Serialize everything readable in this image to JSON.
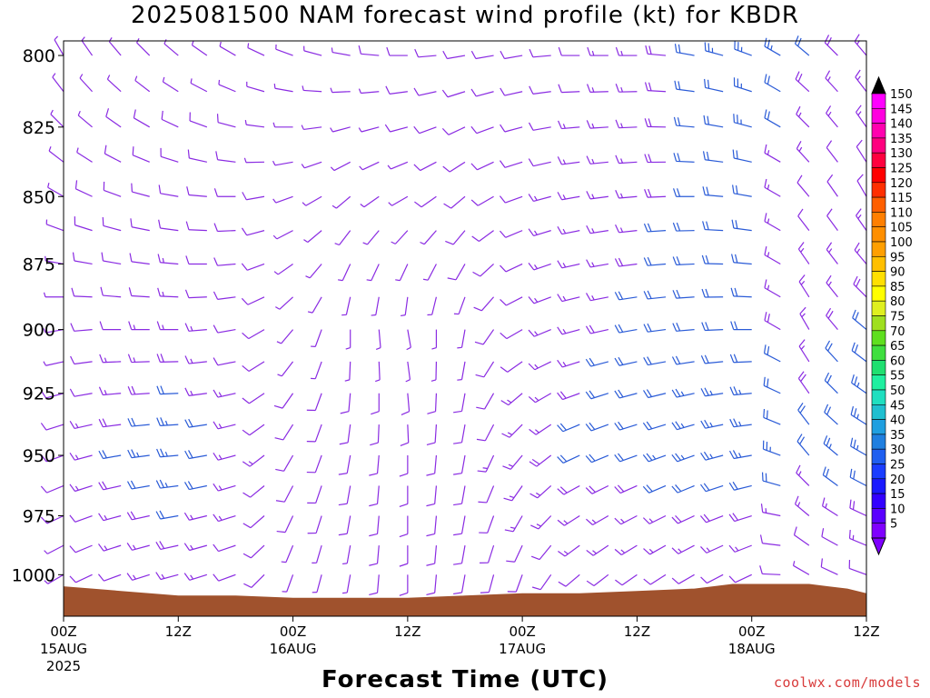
{
  "title": "2025081500 NAM forecast wind profile (kt) for KBDR",
  "credit": "coolwx.com/models",
  "colors": {
    "terrain": "#a0522d",
    "barb_light": "#8a2be2",
    "barb_strong": "#2a5bd7"
  },
  "chart_data": {
    "type": "wind-barb profile",
    "title": "2025081500 NAM forecast wind profile (kt) for KBDR",
    "xlabel": "Forecast Time (UTC)",
    "ylabel": "",
    "y_scale": "pressure (hPa), decreasing upward",
    "ylim": [
      1018,
      795
    ],
    "xlim_hours": [
      0,
      84
    ],
    "y_ticks": [
      {
        "value": 800,
        "label": "800"
      },
      {
        "value": 825,
        "label": "825"
      },
      {
        "value": 850,
        "label": "850"
      },
      {
        "value": 875,
        "label": "875"
      },
      {
        "value": 900,
        "label": "900"
      },
      {
        "value": 925,
        "label": "925"
      },
      {
        "value": 950,
        "label": "950"
      },
      {
        "value": 975,
        "label": "975"
      },
      {
        "value": 1000,
        "label": "1000"
      }
    ],
    "x_ticks": [
      {
        "hour": 0,
        "label": "00Z",
        "sub": "15AUG",
        "sub2": "2025"
      },
      {
        "hour": 12,
        "label": "12Z",
        "sub": "",
        "sub2": ""
      },
      {
        "hour": 24,
        "label": "00Z",
        "sub": "16AUG",
        "sub2": ""
      },
      {
        "hour": 36,
        "label": "12Z",
        "sub": "",
        "sub2": ""
      },
      {
        "hour": 48,
        "label": "00Z",
        "sub": "17AUG",
        "sub2": ""
      },
      {
        "hour": 60,
        "label": "12Z",
        "sub": "",
        "sub2": ""
      },
      {
        "hour": 72,
        "label": "00Z",
        "sub": "18AUG",
        "sub2": ""
      },
      {
        "hour": 84,
        "label": "12Z",
        "sub": "",
        "sub2": ""
      }
    ],
    "surface_pressure": [
      {
        "hour": 0,
        "p": 1005
      },
      {
        "hour": 3,
        "p": 1006
      },
      {
        "hour": 6,
        "p": 1007
      },
      {
        "hour": 9,
        "p": 1008
      },
      {
        "hour": 12,
        "p": 1009
      },
      {
        "hour": 18,
        "p": 1009
      },
      {
        "hour": 24,
        "p": 1010
      },
      {
        "hour": 30,
        "p": 1010
      },
      {
        "hour": 36,
        "p": 1010
      },
      {
        "hour": 42,
        "p": 1009
      },
      {
        "hour": 48,
        "p": 1008
      },
      {
        "hour": 54,
        "p": 1008
      },
      {
        "hour": 60,
        "p": 1007
      },
      {
        "hour": 66,
        "p": 1006
      },
      {
        "hour": 70,
        "p": 1004
      },
      {
        "hour": 72,
        "p": 1004
      },
      {
        "hour": 78,
        "p": 1004
      },
      {
        "hour": 80,
        "p": 1005
      },
      {
        "hour": 82,
        "p": 1006
      },
      {
        "hour": 84,
        "p": 1008
      }
    ],
    "colorbar": {
      "labels": [
        "5",
        "10",
        "15",
        "20",
        "25",
        "30",
        "35",
        "40",
        "45",
        "50",
        "55",
        "60",
        "65",
        "70",
        "75",
        "80",
        "85",
        "90",
        "95",
        "100",
        "105",
        "110",
        "115",
        "120",
        "125",
        "130",
        "135",
        "140",
        "145",
        "150"
      ],
      "colors": [
        "#7f00ff",
        "#5a00ff",
        "#3300ff",
        "#1a1aff",
        "#1a3dff",
        "#1f5ff0",
        "#1f7fe0",
        "#1f9fe0",
        "#1fbfd0",
        "#1fdfc0",
        "#1fefa0",
        "#1fdf70",
        "#3fdf3f",
        "#5fdf1f",
        "#9fdf1f",
        "#dfef1f",
        "#ffff00",
        "#ffdf00",
        "#ffbf00",
        "#ff9f00",
        "#ff8f00",
        "#ff7f00",
        "#ff5f00",
        "#ff2f00",
        "#ff0000",
        "#ff003f",
        "#ff007f",
        "#ff00af",
        "#ff00df",
        "#ff00ff"
      ]
    },
    "wind_columns": [
      {
        "hour": 0,
        "barbs": [
          {
            "p": 800,
            "dir": 330,
            "spd": 5
          },
          {
            "p": 850,
            "dir": 300,
            "spd": 5
          },
          {
            "p": 900,
            "dir": 260,
            "spd": 5
          },
          {
            "p": 950,
            "dir": 250,
            "spd": 10
          },
          {
            "p": 1000,
            "dir": 240,
            "spd": 5
          }
        ]
      },
      {
        "hour": 6,
        "barbs": [
          {
            "p": 800,
            "dir": 320,
            "spd": 5
          },
          {
            "p": 850,
            "dir": 290,
            "spd": 10
          },
          {
            "p": 900,
            "dir": 270,
            "spd": 10
          },
          {
            "p": 950,
            "dir": 260,
            "spd": 20
          },
          {
            "p": 1000,
            "dir": 250,
            "spd": 10
          }
        ]
      },
      {
        "hour": 12,
        "barbs": [
          {
            "p": 800,
            "dir": 310,
            "spd": 5
          },
          {
            "p": 850,
            "dir": 280,
            "spd": 10
          },
          {
            "p": 900,
            "dir": 270,
            "spd": 15
          },
          {
            "p": 950,
            "dir": 265,
            "spd": 25
          },
          {
            "p": 1000,
            "dir": 255,
            "spd": 15
          }
        ]
      },
      {
        "hour": 18,
        "barbs": [
          {
            "p": 800,
            "dir": 300,
            "spd": 5
          },
          {
            "p": 850,
            "dir": 270,
            "spd": 10
          },
          {
            "p": 900,
            "dir": 260,
            "spd": 10
          },
          {
            "p": 950,
            "dir": 255,
            "spd": 15
          },
          {
            "p": 1000,
            "dir": 250,
            "spd": 10
          }
        ]
      },
      {
        "hour": 24,
        "barbs": [
          {
            "p": 800,
            "dir": 290,
            "spd": 5
          },
          {
            "p": 850,
            "dir": 250,
            "spd": 5
          },
          {
            "p": 900,
            "dir": 220,
            "spd": 5
          },
          {
            "p": 950,
            "dir": 210,
            "spd": 10
          },
          {
            "p": 1000,
            "dir": 200,
            "spd": 5
          }
        ]
      },
      {
        "hour": 30,
        "barbs": [
          {
            "p": 800,
            "dir": 280,
            "spd": 5
          },
          {
            "p": 850,
            "dir": 230,
            "spd": 5
          },
          {
            "p": 900,
            "dir": 180,
            "spd": 5
          },
          {
            "p": 950,
            "dir": 190,
            "spd": 10
          },
          {
            "p": 1000,
            "dir": 190,
            "spd": 5
          }
        ]
      },
      {
        "hour": 36,
        "barbs": [
          {
            "p": 800,
            "dir": 270,
            "spd": 10
          },
          {
            "p": 850,
            "dir": 240,
            "spd": 5
          },
          {
            "p": 900,
            "dir": 170,
            "spd": 5
          },
          {
            "p": 950,
            "dir": 180,
            "spd": 10
          },
          {
            "p": 1000,
            "dir": 180,
            "spd": 10
          }
        ]
      },
      {
        "hour": 42,
        "barbs": [
          {
            "p": 800,
            "dir": 260,
            "spd": 10
          },
          {
            "p": 850,
            "dir": 230,
            "spd": 10
          },
          {
            "p": 900,
            "dir": 190,
            "spd": 5
          },
          {
            "p": 950,
            "dir": 190,
            "spd": 10
          },
          {
            "p": 1000,
            "dir": 190,
            "spd": 10
          }
        ]
      },
      {
        "hour": 48,
        "barbs": [
          {
            "p": 800,
            "dir": 260,
            "spd": 10
          },
          {
            "p": 850,
            "dir": 250,
            "spd": 10
          },
          {
            "p": 900,
            "dir": 240,
            "spd": 10
          },
          {
            "p": 950,
            "dir": 220,
            "spd": 15
          },
          {
            "p": 1000,
            "dir": 200,
            "spd": 10
          }
        ]
      },
      {
        "hour": 54,
        "barbs": [
          {
            "p": 800,
            "dir": 270,
            "spd": 10
          },
          {
            "p": 850,
            "dir": 260,
            "spd": 15
          },
          {
            "p": 900,
            "dir": 255,
            "spd": 15
          },
          {
            "p": 950,
            "dir": 245,
            "spd": 20
          },
          {
            "p": 1000,
            "dir": 230,
            "spd": 10
          }
        ]
      },
      {
        "hour": 60,
        "barbs": [
          {
            "p": 800,
            "dir": 270,
            "spd": 15
          },
          {
            "p": 850,
            "dir": 265,
            "spd": 15
          },
          {
            "p": 900,
            "dir": 260,
            "spd": 20
          },
          {
            "p": 950,
            "dir": 250,
            "spd": 20
          },
          {
            "p": 1000,
            "dir": 235,
            "spd": 10
          }
        ]
      },
      {
        "hour": 66,
        "barbs": [
          {
            "p": 800,
            "dir": 280,
            "spd": 20
          },
          {
            "p": 850,
            "dir": 270,
            "spd": 20
          },
          {
            "p": 900,
            "dir": 265,
            "spd": 20
          },
          {
            "p": 950,
            "dir": 250,
            "spd": 25
          },
          {
            "p": 1000,
            "dir": 240,
            "spd": 10
          }
        ]
      },
      {
        "hour": 72,
        "barbs": [
          {
            "p": 800,
            "dir": 290,
            "spd": 25
          },
          {
            "p": 850,
            "dir": 280,
            "spd": 20
          },
          {
            "p": 900,
            "dir": 270,
            "spd": 20
          },
          {
            "p": 950,
            "dir": 260,
            "spd": 25
          },
          {
            "p": 1000,
            "dir": 245,
            "spd": 10
          }
        ]
      },
      {
        "hour": 78,
        "barbs": [
          {
            "p": 800,
            "dir": 310,
            "spd": 20
          },
          {
            "p": 850,
            "dir": 320,
            "spd": 10
          },
          {
            "p": 900,
            "dir": 330,
            "spd": 15
          },
          {
            "p": 950,
            "dir": 320,
            "spd": 20
          },
          {
            "p": 1000,
            "dir": 300,
            "spd": 5
          }
        ]
      },
      {
        "hour": 84,
        "barbs": [
          {
            "p": 800,
            "dir": 320,
            "spd": 15
          },
          {
            "p": 850,
            "dir": 330,
            "spd": 10
          },
          {
            "p": 900,
            "dir": 310,
            "spd": 20
          },
          {
            "p": 950,
            "dir": 300,
            "spd": 25
          },
          {
            "p": 1000,
            "dir": 290,
            "spd": 10
          }
        ]
      }
    ]
  }
}
